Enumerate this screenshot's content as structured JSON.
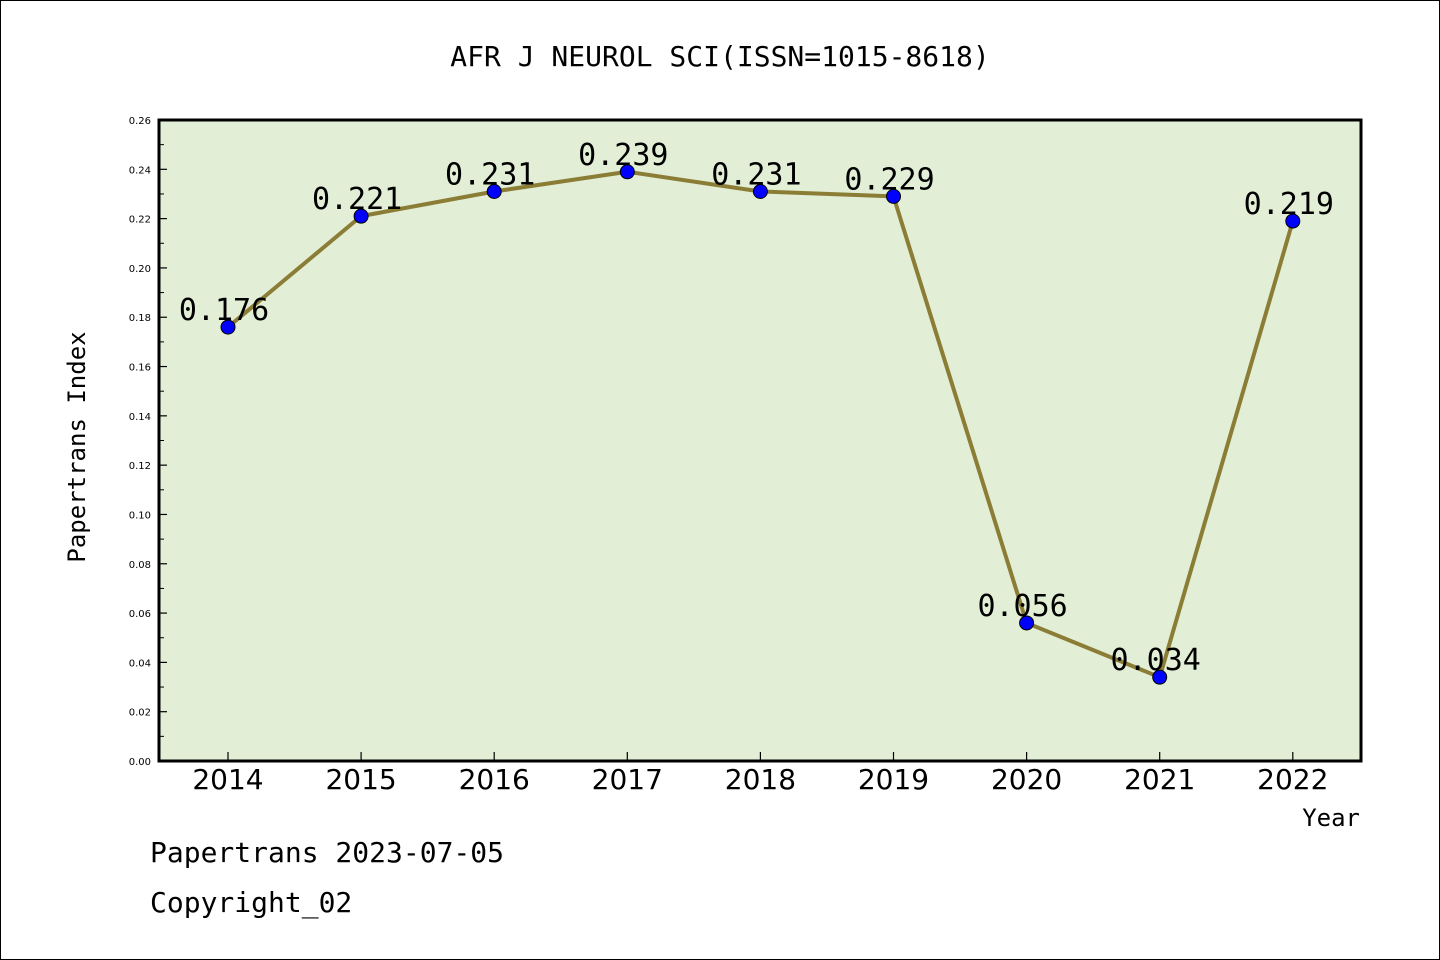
{
  "chart_data": {
    "type": "line",
    "title": "AFR J NEUROL SCI(ISSN=1015-8618)",
    "xlabel": "Year",
    "ylabel": "Papertrans Index",
    "categories": [
      "2014",
      "2015",
      "2016",
      "2017",
      "2018",
      "2019",
      "2020",
      "2021",
      "2022"
    ],
    "series": [
      {
        "values": [
          0.176,
          0.221,
          0.231,
          0.239,
          0.231,
          0.229,
          0.056,
          0.034,
          0.219
        ],
        "labels": [
          "0.176",
          "0.221",
          "0.231",
          "0.239",
          "0.231",
          "0.229",
          "0.056",
          "0.034",
          "0.219"
        ]
      }
    ],
    "ylim": [
      0,
      0.26
    ],
    "yticks": [
      "0.00",
      "0.02",
      "0.04",
      "0.06",
      "0.08",
      "0.10",
      "0.12",
      "0.14",
      "0.16",
      "0.18",
      "0.20",
      "0.22",
      "0.24",
      "0.26"
    ],
    "grid": false,
    "colors": {
      "plot_background": "#e2efd6",
      "line": "#8b7d35",
      "marker": "#0000ff"
    }
  },
  "footer": {
    "line1": "Papertrans 2023-07-05",
    "line2": "Copyright_02"
  }
}
